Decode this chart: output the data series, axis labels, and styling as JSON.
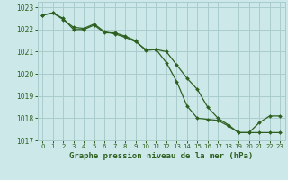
{
  "title": "Graphe pression niveau de la mer (hPa)",
  "background_color": "#cce8e8",
  "grid_color": "#aacccc",
  "line_color": "#2d6020",
  "line1_y": [
    1022.65,
    1022.75,
    1022.5,
    1022.0,
    1022.0,
    1022.2,
    1021.85,
    1021.85,
    1021.7,
    1021.5,
    1021.05,
    1021.1,
    1020.5,
    1019.65,
    1018.55,
    1018.0,
    1017.95,
    1017.9,
    1017.65,
    1017.35,
    1017.35,
    1017.35,
    1017.35,
    1017.35
  ],
  "line2_y": [
    1022.65,
    1022.75,
    1022.45,
    1022.1,
    1022.05,
    1022.25,
    1021.9,
    1021.8,
    1021.65,
    1021.45,
    1021.1,
    1021.1,
    1021.0,
    1020.4,
    1019.8,
    1019.3,
    1018.5,
    1018.0,
    1017.7,
    1017.35,
    1017.35,
    1017.8,
    1018.1,
    1018.1
  ],
  "ylim": [
    1017.0,
    1023.25
  ],
  "yticks": [
    1017,
    1018,
    1019,
    1020,
    1021,
    1022,
    1023
  ],
  "xlim": [
    -0.5,
    23.5
  ],
  "xticks": [
    0,
    1,
    2,
    3,
    4,
    5,
    6,
    7,
    8,
    9,
    10,
    11,
    12,
    13,
    14,
    15,
    16,
    17,
    18,
    19,
    20,
    21,
    22,
    23
  ],
  "xticklabels": [
    "0",
    "1",
    "2",
    "3",
    "4",
    "5",
    "6",
    "7",
    "8",
    "9",
    "10",
    "11",
    "12",
    "13",
    "14",
    "15",
    "16",
    "17",
    "18",
    "19",
    "20",
    "21",
    "22",
    "23"
  ]
}
